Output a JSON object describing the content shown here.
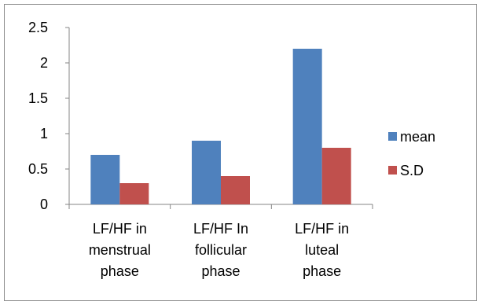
{
  "chart_data": {
    "type": "bar",
    "title": "",
    "xlabel": "",
    "ylabel": "",
    "categories": [
      [
        "LF/HF in",
        "menstrual",
        "phase"
      ],
      [
        "LF/HF In",
        "follicular",
        "phase"
      ],
      [
        "LF/HF in",
        "luteal",
        "phase"
      ]
    ],
    "series": [
      {
        "name": "mean",
        "color": "#4f81bd",
        "values": [
          0.7,
          0.9,
          2.2
        ]
      },
      {
        "name": "S.D",
        "color": "#c0504d",
        "values": [
          0.3,
          0.4,
          0.8
        ]
      }
    ],
    "ylim": [
      0,
      2.5
    ],
    "yticks": [
      "0",
      "0.5",
      "1",
      "1.5",
      "2",
      "2.5"
    ],
    "grid": false,
    "legend": "right"
  }
}
